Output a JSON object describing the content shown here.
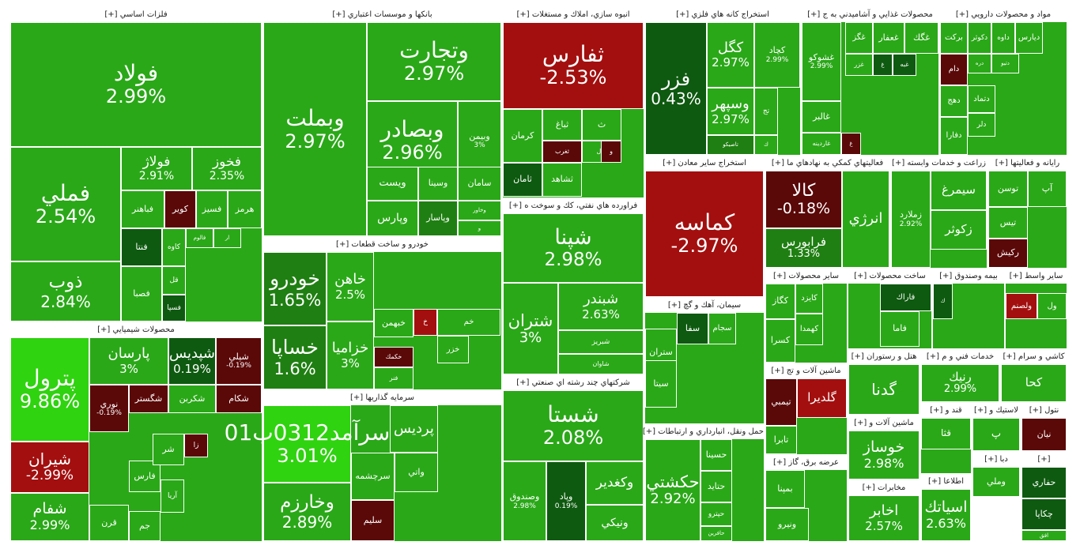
{
  "colors": {
    "strong_up": "#2fd30f",
    "up": "#2aa818",
    "flat_up": "#1f7f12",
    "flat": "#0e5a10",
    "down": "#a30f0f",
    "flat_down": "#5a0808"
  },
  "chart_data": {
    "type": "treemap",
    "title": "",
    "sectors": [
      {
        "name": "فلزات اساسي [+]",
        "tiles": [
          {
            "name": "فولاد",
            "change": "2.99%",
            "color": "up"
          },
          {
            "name": "فملي",
            "change": "2.54%",
            "color": "up"
          },
          {
            "name": "ذوب",
            "change": "2.84%",
            "color": "up"
          },
          {
            "name": "فولاژ",
            "change": "2.91%",
            "color": "up"
          },
          {
            "name": "فخوز",
            "change": "2.35%",
            "color": "up"
          },
          {
            "name": "فباهنر",
            "change": "",
            "color": "up"
          },
          {
            "name": "كوير",
            "change": "",
            "color": "flat_down"
          },
          {
            "name": "فسيز",
            "change": "",
            "color": "up"
          },
          {
            "name": "هرمز",
            "change": "",
            "color": "up"
          },
          {
            "name": "فنتا",
            "change": "",
            "color": "flat"
          },
          {
            "name": "كاوه",
            "change": "",
            "color": "up"
          },
          {
            "name": "فالوم",
            "change": "",
            "color": "up"
          },
          {
            "name": "ار",
            "change": "",
            "color": "up"
          },
          {
            "name": "فصبا",
            "change": "",
            "color": "up"
          },
          {
            "name": "قل",
            "change": "",
            "color": "up"
          },
          {
            "name": "فسپا",
            "change": "",
            "color": "flat"
          }
        ]
      },
      {
        "name": "بانكها و موسسات اعتباري [+]",
        "tiles": [
          {
            "name": "وبملت",
            "change": "2.97%",
            "color": "up"
          },
          {
            "name": "وتجارت",
            "change": "2.97%",
            "color": "up"
          },
          {
            "name": "وبصادر",
            "change": "2.96%",
            "color": "up"
          },
          {
            "name": "وبيمن",
            "change": "3%",
            "color": "up"
          },
          {
            "name": "ويست",
            "change": "",
            "color": "up"
          },
          {
            "name": "وسينا",
            "change": "",
            "color": "up"
          },
          {
            "name": "سامان",
            "change": "",
            "color": "up"
          },
          {
            "name": "وخاور",
            "change": "",
            "color": "up"
          },
          {
            "name": "وپارس",
            "change": "",
            "color": "up"
          },
          {
            "name": "وپاسار",
            "change": "",
            "color": "flat_up"
          },
          {
            "name": "و",
            "change": "",
            "color": "up"
          }
        ]
      },
      {
        "name": "انبوه سازي، املاك و مستغلات [+]",
        "tiles": [
          {
            "name": "ثفارس",
            "change": "-2.53%",
            "color": "down"
          },
          {
            "name": "كرمان",
            "change": "",
            "color": "up"
          },
          {
            "name": "ثباغ",
            "change": "",
            "color": "up"
          },
          {
            "name": "ث",
            "change": "",
            "color": "up"
          },
          {
            "name": "ثغرب",
            "change": "",
            "color": "flat_down"
          },
          {
            "name": "ثتال",
            "change": "",
            "color": "up"
          },
          {
            "name": "ثامان",
            "change": "",
            "color": "flat"
          },
          {
            "name": "ثشاهد",
            "change": "",
            "color": "up"
          },
          {
            "name": "و",
            "change": "",
            "color": "flat_down"
          }
        ]
      },
      {
        "name": "استخراج كانه هاي فلزي [+]",
        "tiles": [
          {
            "name": "فزر",
            "change": "0.43%",
            "color": "flat"
          },
          {
            "name": "كگل",
            "change": "2.97%",
            "color": "up"
          },
          {
            "name": "كچاد",
            "change": "2.99%",
            "color": "up"
          },
          {
            "name": "وسپهر",
            "change": "2.97%",
            "color": "up"
          },
          {
            "name": "تج",
            "change": "",
            "color": "up"
          },
          {
            "name": "ك",
            "change": "",
            "color": "up"
          },
          {
            "name": "تاصيكو",
            "change": "",
            "color": "flat_up"
          }
        ]
      },
      {
        "name": "محصولات غذايي و آشاميدني به ج [+]",
        "tiles": [
          {
            "name": "غشوكو",
            "change": "2.99%",
            "color": "up"
          },
          {
            "name": "غگز",
            "change": "",
            "color": "up"
          },
          {
            "name": "غعفار",
            "change": "",
            "color": "up"
          },
          {
            "name": "غگك",
            "change": "",
            "color": "up"
          },
          {
            "name": "غزر",
            "change": "",
            "color": "up"
          },
          {
            "name": "غ",
            "change": "",
            "color": "flat"
          },
          {
            "name": "غبه",
            "change": "",
            "color": "flat"
          },
          {
            "name": "غالبر",
            "change": "",
            "color": "up"
          },
          {
            "name": "غاردينه",
            "change": "",
            "color": "up"
          },
          {
            "name": "غ",
            "change": "",
            "color": "flat_down"
          }
        ]
      },
      {
        "name": "مواد و محصولات دارويي [+]",
        "tiles": [
          {
            "name": "بركت",
            "change": "",
            "color": "up"
          },
          {
            "name": "دكوثر",
            "change": "",
            "color": "up"
          },
          {
            "name": "داوه",
            "change": "",
            "color": "up"
          },
          {
            "name": "ديارس",
            "change": "",
            "color": "up"
          },
          {
            "name": "دام",
            "change": "",
            "color": "flat_down"
          },
          {
            "name": "دره",
            "change": "",
            "color": "up"
          },
          {
            "name": "دتيو",
            "change": "",
            "color": "up"
          },
          {
            "name": "دهج",
            "change": "",
            "color": "up"
          },
          {
            "name": "دتماد",
            "change": "",
            "color": "up"
          },
          {
            "name": "دلر",
            "change": "",
            "color": "up"
          },
          {
            "name": "دفارا",
            "change": "",
            "color": "up"
          }
        ]
      },
      {
        "name": "محصولات شيميايي [+]",
        "tiles": [
          {
            "name": "پترول",
            "change": "9.86%",
            "color": "strong_up"
          },
          {
            "name": "شيران",
            "change": "-2.99%",
            "color": "down"
          },
          {
            "name": "شفام",
            "change": "2.99%",
            "color": "up"
          },
          {
            "name": "پارسان",
            "change": "3%",
            "color": "up"
          },
          {
            "name": "شپديس",
            "change": "0.19%",
            "color": "flat"
          },
          {
            "name": "شپلي",
            "change": "-0.19%",
            "color": "flat_down"
          },
          {
            "name": "شگستر",
            "change": "",
            "color": "flat_down"
          },
          {
            "name": "شكربن",
            "change": "",
            "color": "up"
          },
          {
            "name": "شكام",
            "change": "",
            "color": "flat_down"
          },
          {
            "name": "نوري",
            "change": "-0.19%",
            "color": "flat_down"
          },
          {
            "name": "فارس",
            "change": "",
            "color": "up"
          },
          {
            "name": "قرن",
            "change": "",
            "color": "up"
          },
          {
            "name": "جم",
            "change": "",
            "color": "up"
          },
          {
            "name": "آريا",
            "change": "",
            "color": "up"
          },
          {
            "name": "زا",
            "change": "",
            "color": "flat_down"
          },
          {
            "name": "شر",
            "change": "",
            "color": "up"
          }
        ]
      },
      {
        "name": "خودرو و ساخت قطعات [+]",
        "tiles": [
          {
            "name": "خودرو",
            "change": "1.65%",
            "color": "flat_up"
          },
          {
            "name": "خساپا",
            "change": "1.6%",
            "color": "flat_up"
          },
          {
            "name": "خاهن",
            "change": "2.5%",
            "color": "up"
          },
          {
            "name": "خزاميا",
            "change": "3%",
            "color": "up"
          },
          {
            "name": "خبهمن",
            "change": "",
            "color": "up"
          },
          {
            "name": "خكمك",
            "change": "",
            "color": "flat_down"
          },
          {
            "name": "خم",
            "change": "",
            "color": "up"
          },
          {
            "name": "خ",
            "change": "",
            "color": "down"
          },
          {
            "name": "خزر",
            "change": "",
            "color": "up"
          },
          {
            "name": "فنر",
            "change": "",
            "color": "up"
          }
        ]
      },
      {
        "name": "فراورده هاي نفتي، كك و سوخت ه [+]",
        "tiles": [
          {
            "name": "شپنا",
            "change": "2.98%",
            "color": "up"
          },
          {
            "name": "شتران",
            "change": "3%",
            "color": "up"
          },
          {
            "name": "شبندر",
            "change": "2.63%",
            "color": "up"
          },
          {
            "name": "شبريز",
            "change": "",
            "color": "up"
          },
          {
            "name": "شاوان",
            "change": "",
            "color": "up"
          }
        ]
      },
      {
        "name": "استخراج ساير معادن [+]",
        "tiles": [
          {
            "name": "كماسه",
            "change": "-2.97%",
            "color": "down"
          }
        ]
      },
      {
        "name": "فعاليتهاي كمكي به نهادهاي ما [+]",
        "tiles": [
          {
            "name": "كالا",
            "change": "-0.18%",
            "color": "flat_down"
          },
          {
            "name": "فرابورس",
            "change": "1.33%",
            "color": "flat_up"
          },
          {
            "name": "انرژي",
            "change": "",
            "color": "up"
          }
        ]
      },
      {
        "name": "زراعت و خدمات وابسته [+]",
        "tiles": [
          {
            "name": "زملارد",
            "change": "2.92%",
            "color": "up"
          },
          {
            "name": "سيمرغ",
            "change": "",
            "color": "up"
          },
          {
            "name": "زكوثر",
            "change": "",
            "color": "up"
          }
        ]
      },
      {
        "name": "رايانه و فعاليتها [+]",
        "tiles": [
          {
            "name": "آپ",
            "change": "",
            "color": "up"
          },
          {
            "name": "توسن",
            "change": "",
            "color": "up"
          },
          {
            "name": "تيس",
            "change": "",
            "color": "up"
          },
          {
            "name": "ركيش",
            "change": "",
            "color": "flat_down"
          }
        ]
      },
      {
        "name": "سرمايه گذاريها [+]",
        "tiles": [
          {
            "name": "سرآمد0312ب01",
            "change": "3.01%",
            "color": "strong_up"
          },
          {
            "name": "وخارزم",
            "change": "2.89%",
            "color": "up"
          },
          {
            "name": "پرديس",
            "change": "",
            "color": "up"
          },
          {
            "name": "سرچشمه",
            "change": "",
            "color": "up"
          },
          {
            "name": "واتي",
            "change": "",
            "color": "up"
          },
          {
            "name": "سليم",
            "change": "",
            "color": "flat_down"
          }
        ]
      },
      {
        "name": "شركتهاي چند رشته اي صنعتي [+]",
        "tiles": [
          {
            "name": "شستا",
            "change": "2.08%",
            "color": "up"
          },
          {
            "name": "وكغدير",
            "change": "",
            "color": "up"
          },
          {
            "name": "وصندوق",
            "change": "2.98%",
            "color": "up"
          },
          {
            "name": "وپاد",
            "change": "0.19%",
            "color": "flat"
          },
          {
            "name": "ونيكي",
            "change": "",
            "color": "up"
          }
        ]
      },
      {
        "name": "سيمان، آهك و گچ [+]",
        "tiles": [
          {
            "name": "سفا",
            "change": "",
            "color": "flat"
          },
          {
            "name": "سجام",
            "change": "",
            "color": "up"
          },
          {
            "name": "ستران",
            "change": "",
            "color": "up"
          },
          {
            "name": "سيتا",
            "change": "",
            "color": "up"
          }
        ]
      },
      {
        "name": "حمل ونقل، انبارداري و ارتباطات [+]",
        "tiles": [
          {
            "name": "حكشتي",
            "change": "2.92%",
            "color": "up"
          },
          {
            "name": "حسينا",
            "change": "",
            "color": "up"
          },
          {
            "name": "حتايد",
            "change": "",
            "color": "up"
          },
          {
            "name": "حپترو",
            "change": "",
            "color": "up"
          },
          {
            "name": "حافرين",
            "change": "",
            "color": "up"
          }
        ]
      },
      {
        "name": "ساير محصولات [+]",
        "tiles": [
          {
            "name": "كگاز",
            "change": "",
            "color": "up"
          },
          {
            "name": "كايزد",
            "change": "",
            "color": "up"
          },
          {
            "name": "كهمدا",
            "change": "",
            "color": "up"
          },
          {
            "name": "كسرا",
            "change": "",
            "color": "up"
          }
        ]
      },
      {
        "name": "ساخت محصولات [+]",
        "tiles": [
          {
            "name": "فاراك",
            "change": "",
            "color": "flat"
          },
          {
            "name": "فاما",
            "change": "",
            "color": "up"
          }
        ]
      },
      {
        "name": "بيمه وصندوق [+]",
        "tiles": [
          {
            "name": "ك",
            "change": "",
            "color": "flat"
          }
        ]
      },
      {
        "name": "ساير واسط [+]",
        "tiles": [
          {
            "name": "ولصنم",
            "change": "",
            "color": "down"
          },
          {
            "name": "ول",
            "change": "",
            "color": "up"
          }
        ]
      },
      {
        "name": "ماشين آلات و تج [+]",
        "tiles": [
          {
            "name": "گلديرا",
            "change": "",
            "color": "down"
          },
          {
            "name": "تيمبي",
            "change": "",
            "color": "flat_down"
          },
          {
            "name": "تابرا",
            "change": "",
            "color": "up"
          }
        ]
      },
      {
        "name": "هتل و رستوران [+]",
        "tiles": [
          {
            "name": "گدنا",
            "change": "",
            "color": "up"
          }
        ]
      },
      {
        "name": "خدمات فني و م [+]",
        "tiles": [
          {
            "name": "رنيك",
            "change": "2.99%",
            "color": "up"
          }
        ]
      },
      {
        "name": "كاشي و سرام [+]",
        "tiles": [
          {
            "name": "كحا",
            "change": "",
            "color": "up"
          }
        ]
      },
      {
        "name": "عرضه برق، گاز [+]",
        "tiles": [
          {
            "name": "بمپنا",
            "change": "",
            "color": "up"
          },
          {
            "name": "ونيرو",
            "change": "",
            "color": "up"
          }
        ]
      },
      {
        "name": "ماشين آلات و [+]",
        "tiles": [
          {
            "name": "خوساز",
            "change": "2.98%",
            "color": "up"
          }
        ]
      },
      {
        "name": "مخابرات [+]",
        "tiles": [
          {
            "name": "اخابر",
            "change": "2.57%",
            "color": "up"
          }
        ]
      },
      {
        "name": "قند و [+]",
        "tiles": [
          {
            "name": "قثا",
            "change": "",
            "color": "up"
          }
        ]
      },
      {
        "name": "لاستيك و [+]",
        "tiles": [
          {
            "name": "پ",
            "change": "",
            "color": "up"
          }
        ]
      },
      {
        "name": "نتول [+]",
        "tiles": [
          {
            "name": "نيان",
            "change": "",
            "color": "flat_down"
          }
        ]
      },
      {
        "name": "اطلاعا [+]",
        "tiles": [
          {
            "name": "اسياتك",
            "change": "2.63%",
            "color": "up"
          }
        ]
      },
      {
        "name": "دبا [+]",
        "tiles": [
          {
            "name": "وملي",
            "change": "",
            "color": "up"
          }
        ]
      },
      {
        "name": "[+]",
        "tiles": [
          {
            "name": "حفاري",
            "change": "",
            "color": "flat"
          },
          {
            "name": "چكاپا",
            "change": "",
            "color": "flat"
          },
          {
            "name": "افق",
            "change": "",
            "color": "up"
          }
        ]
      }
    ]
  }
}
